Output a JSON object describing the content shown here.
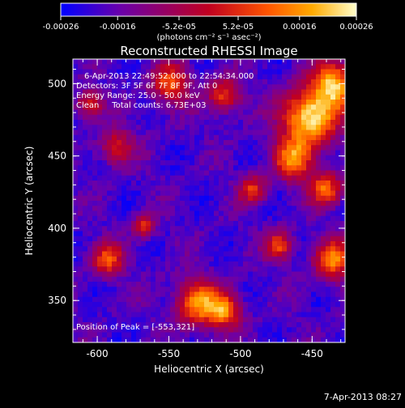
{
  "chart_data": {
    "type": "heatmap",
    "title": "Reconstructed RHESSI Image",
    "xlabel": "Heliocentric X (arcsec)",
    "ylabel": "Heliocentric Y (arcsec)",
    "xlim": [
      -617,
      -427
    ],
    "ylim": [
      321,
      517
    ],
    "xticks": [
      "-600",
      "-550",
      "-500",
      "-450"
    ],
    "xtick_values": [
      -600,
      -550,
      -500,
      -450
    ],
    "yticks": [
      "350",
      "400",
      "450",
      "500"
    ],
    "ytick_values": [
      350,
      400,
      450,
      500
    ],
    "colorbar": {
      "ticks": [
        "-0.00026",
        "-0.00016",
        "-5.2e-05",
        "5.2e-05",
        "0.00016",
        "0.00026"
      ],
      "tick_values": [
        -0.00026,
        -0.00016,
        -5.2e-05,
        5.2e-05,
        0.00016,
        0.00026
      ],
      "range": [
        -0.00026,
        0.00026
      ],
      "units": "(photons cm⁻² s⁻¹ asec⁻²)",
      "colors": [
        "#0000ff",
        "#6a00aa",
        "#c00020",
        "#ff5500",
        "#ffaa00",
        "#ffffcc"
      ]
    },
    "annotations": [
      "6-Apr-2013 22:49:52.000 to 22:54:34.000",
      "Detectors: 3F 5F 6F 7F 8F 9F, Att 0",
      "Energy Range: 25.0 - 50.0 keV",
      "Clean     Total counts: 6.73E+03"
    ],
    "peak_label": "Position of Peak = [-553,321]",
    "peak": [
      -553,
      321
    ],
    "footer_date": "7-Apr-2013 08:27",
    "grid": false
  }
}
